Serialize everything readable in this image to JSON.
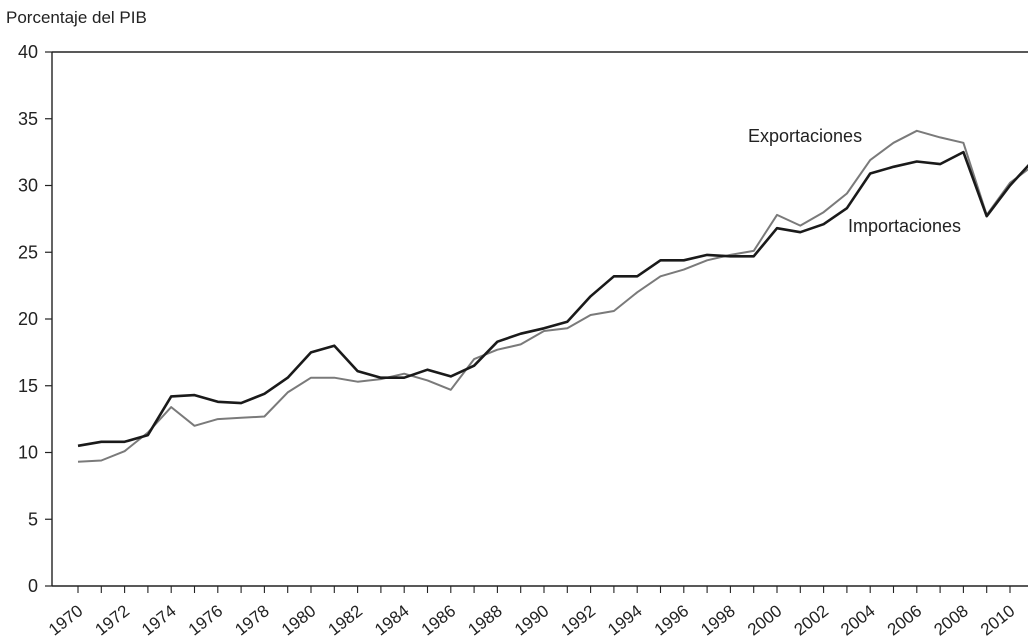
{
  "chart_data": {
    "type": "line",
    "title": "",
    "xlabel": "",
    "ylabel": "Porcentaje del PIB",
    "xlim": [
      1968.8,
      2010.8
    ],
    "ylim": [
      0,
      40
    ],
    "yticks": [
      0,
      5,
      10,
      15,
      20,
      25,
      30,
      35,
      40
    ],
    "xtick_labels": [
      "1970",
      "1972",
      "1974",
      "1976",
      "1978",
      "1980",
      "1982",
      "1984",
      "1986",
      "1988",
      "1990",
      "1992",
      "1994",
      "1996",
      "1998",
      "2000",
      "2002",
      "2004",
      "2006",
      "2008",
      "2010"
    ],
    "grid": false,
    "legend": "none",
    "x": [
      1970,
      1971,
      1972,
      1973,
      1974,
      1975,
      1976,
      1977,
      1978,
      1979,
      1980,
      1981,
      1982,
      1983,
      1984,
      1985,
      1986,
      1987,
      1988,
      1989,
      1990,
      1991,
      1992,
      1993,
      1994,
      1995,
      1996,
      1997,
      1998,
      1999,
      2000,
      2001,
      2002,
      2003,
      2004,
      2005,
      2006,
      2007,
      2008,
      2009,
      2010,
      2011
    ],
    "series": [
      {
        "name": "Exportaciones",
        "color": "#7a7a7a",
        "values": [
          9.3,
          9.4,
          10.1,
          11.5,
          13.4,
          12.0,
          12.5,
          12.6,
          12.7,
          14.5,
          15.6,
          15.6,
          15.3,
          15.5,
          15.9,
          15.4,
          14.7,
          17.0,
          17.7,
          18.1,
          19.1,
          19.3,
          20.3,
          20.6,
          22.0,
          23.2,
          23.7,
          24.4,
          24.8,
          25.1,
          27.8,
          27.0,
          28.0,
          29.4,
          31.9,
          33.2,
          34.1,
          33.6,
          33.2,
          27.8,
          30.2,
          31.5
        ]
      },
      {
        "name": "Importaciones",
        "color": "#1a1a1a",
        "values": [
          10.5,
          10.8,
          10.8,
          11.3,
          14.2,
          14.3,
          13.8,
          13.7,
          14.4,
          15.6,
          17.5,
          18.0,
          16.1,
          15.6,
          15.6,
          16.2,
          15.7,
          16.5,
          18.3,
          18.9,
          19.3,
          19.8,
          21.7,
          23.2,
          23.2,
          24.4,
          24.4,
          24.8,
          24.7,
          24.7,
          26.8,
          26.5,
          27.1,
          28.3,
          30.9,
          31.4,
          31.8,
          31.6,
          32.5,
          27.7,
          30.0,
          31.9
        ]
      }
    ],
    "annotations": [
      "Exportaciones",
      "Importaciones"
    ]
  }
}
